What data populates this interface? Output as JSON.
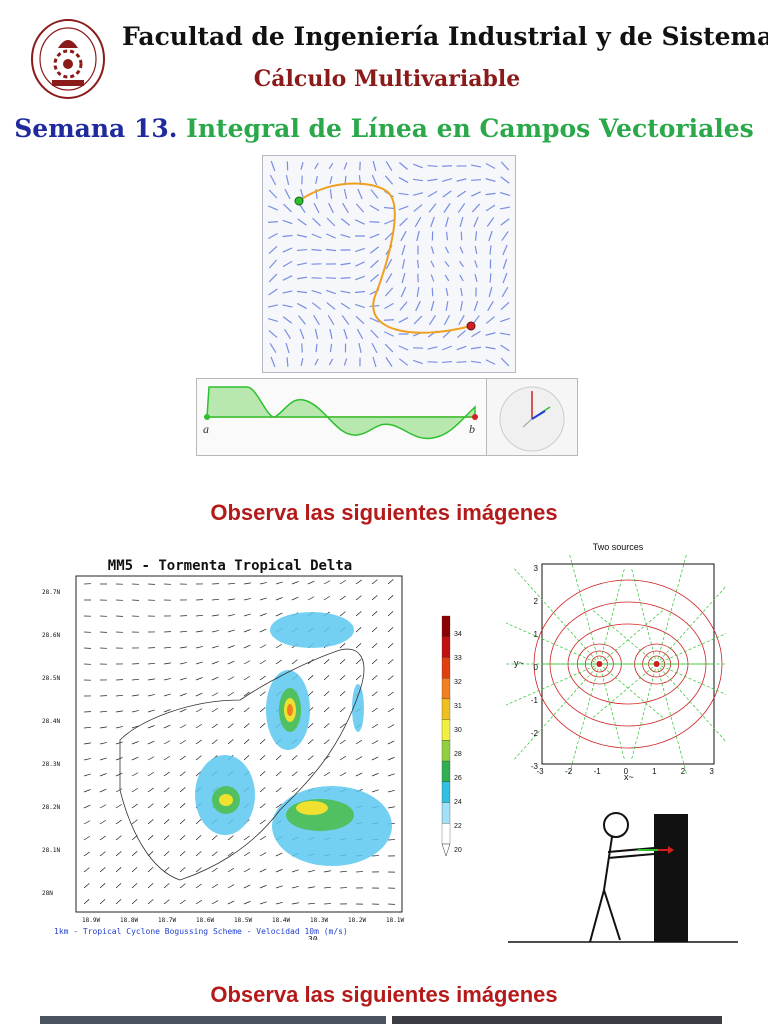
{
  "header": {
    "title": "Facultad de Ingeniería Industrial y de Sistemas",
    "subtitle": "Cálculo Multivariable"
  },
  "week": {
    "label": "Semana 13.",
    "topic": "Integral de Línea en Campos Vectoriales"
  },
  "line_integral_figure": {
    "point_a": "a",
    "point_b": "b"
  },
  "section_heading_1": "Observa las siguientes imágenes",
  "section_heading_2": "Observa las siguientes imágenes",
  "storm_figure": {
    "title": "MM5 - Tormenta Tropical Delta",
    "lat_labels": [
      "28.7N",
      "28.6N",
      "28.5N",
      "28.4N",
      "28.3N",
      "28.2N",
      "28.1N",
      "28N"
    ],
    "lon_labels": [
      "18.9W",
      "18.8W",
      "18.7W",
      "18.6W",
      "18.5W",
      "18.4W",
      "18.3W",
      "18.2W",
      "18.1W"
    ],
    "footer": "1km - Tropical Cyclone Bogussing Scheme - Velocidad 10m (m/s)",
    "footer_scale": "30"
  },
  "colorbar": {
    "ticks": [
      "34",
      "33",
      "32",
      "31",
      "30",
      "28",
      "26",
      "24",
      "22",
      "20"
    ]
  },
  "two_sources": {
    "title": "Two sources",
    "ylabel": "y~",
    "xlabel": "x~",
    "ticks": [
      "-3",
      "-2",
      "-1",
      "0",
      "1",
      "2",
      "3"
    ]
  },
  "colors": {
    "header_red": "#8b1a1a",
    "week_blue": "#1f2a9c",
    "topic_green": "#2aa84a",
    "section_red": "#b51a1a"
  }
}
